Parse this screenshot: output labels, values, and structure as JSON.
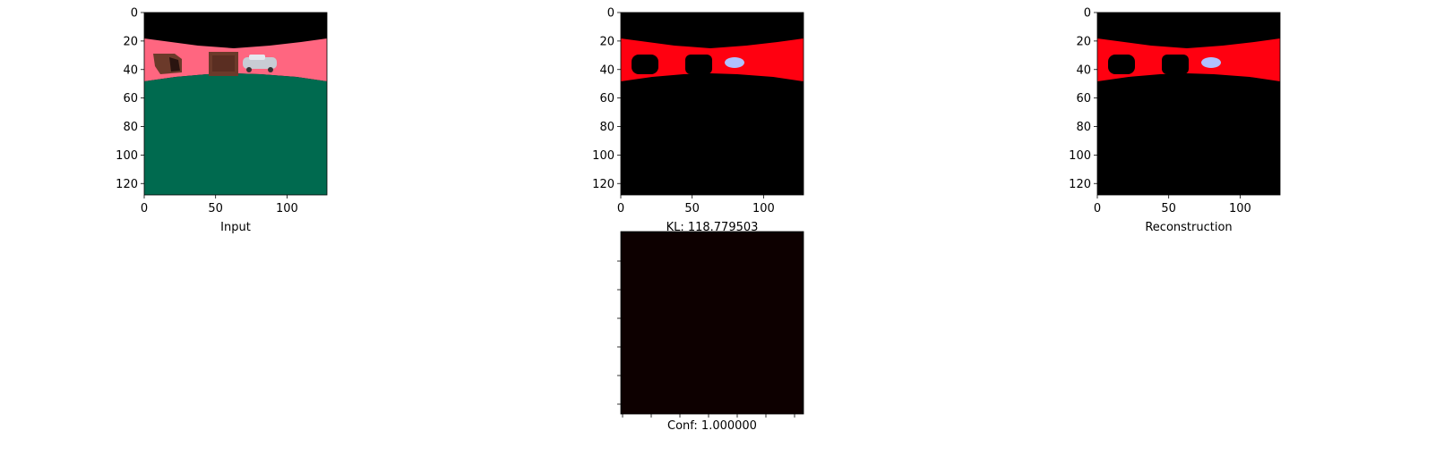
{
  "chart_data": [
    {
      "type": "image",
      "xlabel": "Input",
      "xlim": [
        0,
        128
      ],
      "ylim": [
        128,
        0
      ],
      "xticks": [
        0,
        50,
        100
      ],
      "yticks": [
        0,
        20,
        40,
        60,
        80,
        100,
        120
      ],
      "xtick_labels": [
        "0",
        "50",
        "100"
      ],
      "ytick_labels": [
        "0",
        "20",
        "40",
        "60",
        "80",
        "100",
        "120"
      ],
      "colors": {
        "sky": "#000000",
        "wall": "#ff6680",
        "floor": "#006a4f",
        "box": "#6b3a2a",
        "car": "#c8ccd4"
      }
    },
    {
      "type": "image",
      "xlabel": "KL: 118.779503",
      "xlim": [
        0,
        128
      ],
      "ylim": [
        128,
        0
      ],
      "xticks": [
        0,
        50,
        100
      ],
      "yticks": [
        0,
        20,
        40,
        60,
        80,
        100,
        120
      ],
      "xtick_labels": [
        "0",
        "50",
        "100"
      ],
      "ytick_labels": [
        "0",
        "20",
        "40",
        "60",
        "80",
        "100",
        "120"
      ],
      "colors": {
        "background": "#000000",
        "wall": "#ff0010",
        "car": "#b0c0ff"
      }
    },
    {
      "type": "image",
      "xlabel": "Reconstruction",
      "xlim": [
        0,
        128
      ],
      "ylim": [
        128,
        0
      ],
      "xticks": [
        0,
        50,
        100
      ],
      "yticks": [
        0,
        20,
        40,
        60,
        80,
        100,
        120
      ],
      "xtick_labels": [
        "0",
        "50",
        "100"
      ],
      "ytick_labels": [
        "0",
        "20",
        "40",
        "60",
        "80",
        "100",
        "120"
      ],
      "colors": {
        "background": "#000000",
        "wall": "#ff0010",
        "car": "#b0c0ff"
      }
    },
    {
      "type": "heatmap",
      "xlabel": "Conf: 1.000000",
      "value": 1.0,
      "colors": {
        "fill": "#0d0000"
      }
    }
  ]
}
